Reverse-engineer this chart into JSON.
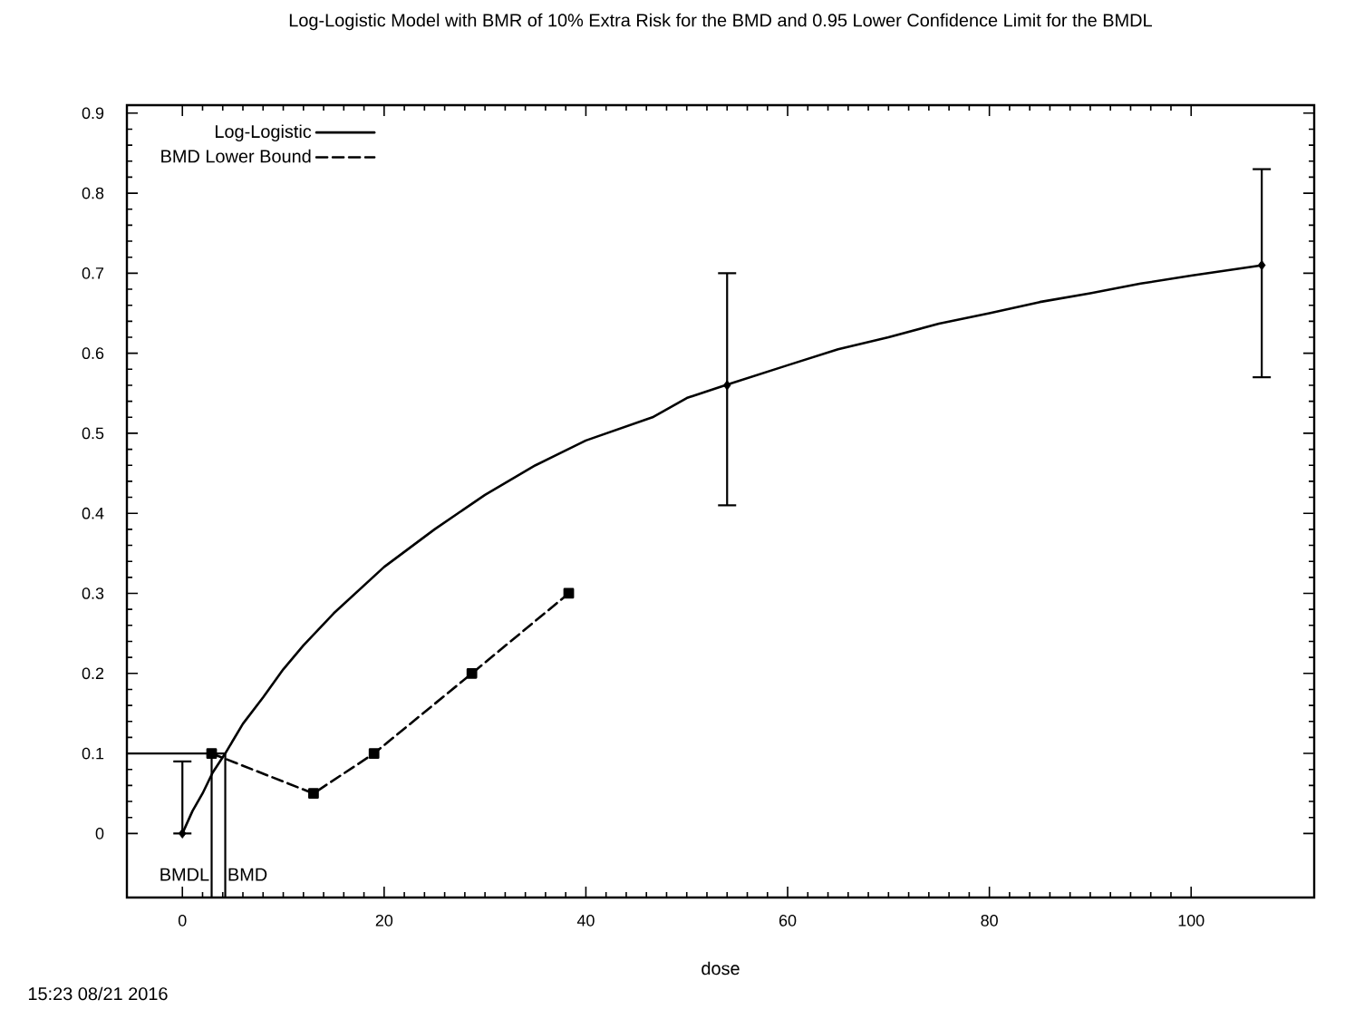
{
  "chart_data": {
    "type": "line",
    "title": "Log-Logistic Model with BMR of 10% Extra Risk for the BMD and 0.95 Lower Confidence Limit for the BMDL",
    "xlabel": "dose",
    "xlim": [
      -5.5,
      112.2
    ],
    "ylim": [
      -0.08,
      0.91
    ],
    "xticks": [
      0,
      20,
      40,
      60,
      80,
      100
    ],
    "yticks": [
      0,
      0.1,
      0.2,
      0.3,
      0.4,
      0.5,
      0.6,
      0.7,
      0.8,
      0.9
    ],
    "legend": "top left",
    "series": [
      {
        "name": "Log-Logistic",
        "type": "line",
        "color": "#000000",
        "marker": "none",
        "line_style": "solid",
        "x": [
          0,
          1,
          2,
          3,
          4.25,
          6,
          8,
          10,
          12,
          15,
          20,
          25,
          30,
          35,
          40,
          46.6,
          50,
          53.8,
          60,
          65,
          70,
          75,
          80,
          85,
          90,
          95,
          100,
          107.1
        ],
        "values": [
          0,
          0.028,
          0.05,
          0.076,
          0.1,
          0.137,
          0.17,
          0.205,
          0.235,
          0.275,
          0.333,
          0.38,
          0.423,
          0.46,
          0.491,
          0.52,
          0.544,
          0.56,
          0.585,
          0.605,
          0.62,
          0.637,
          0.65,
          0.664,
          0.675,
          0.687,
          0.697,
          0.71
        ]
      },
      {
        "name": "BMD Lower Bound",
        "type": "line",
        "color": "#000000",
        "marker": "square",
        "line_style": "dashed",
        "x": [
          2.9,
          13,
          19,
          28.7,
          38.3
        ],
        "values": [
          0.1,
          0.05,
          0.1,
          0.2,
          0.3
        ]
      },
      {
        "type": "scatter",
        "color": "#000000",
        "marker": "diamond",
        "x": [
          0,
          54,
          107
        ],
        "values": [
          0,
          0.56,
          0.71
        ],
        "errors": [
          [
            0,
            0.09
          ],
          [
            0.41,
            0.7
          ],
          [
            0.57,
            0.83
          ]
        ]
      }
    ],
    "ref_lines": [
      {
        "axis": "x",
        "value": 2.9,
        "label": "BMDL"
      },
      {
        "axis": "x",
        "value": 4.25,
        "label": "BMD"
      },
      {
        "axis": "y",
        "value": 0.1
      }
    ],
    "annotations": [
      "15:23 08/21 2016"
    ]
  }
}
